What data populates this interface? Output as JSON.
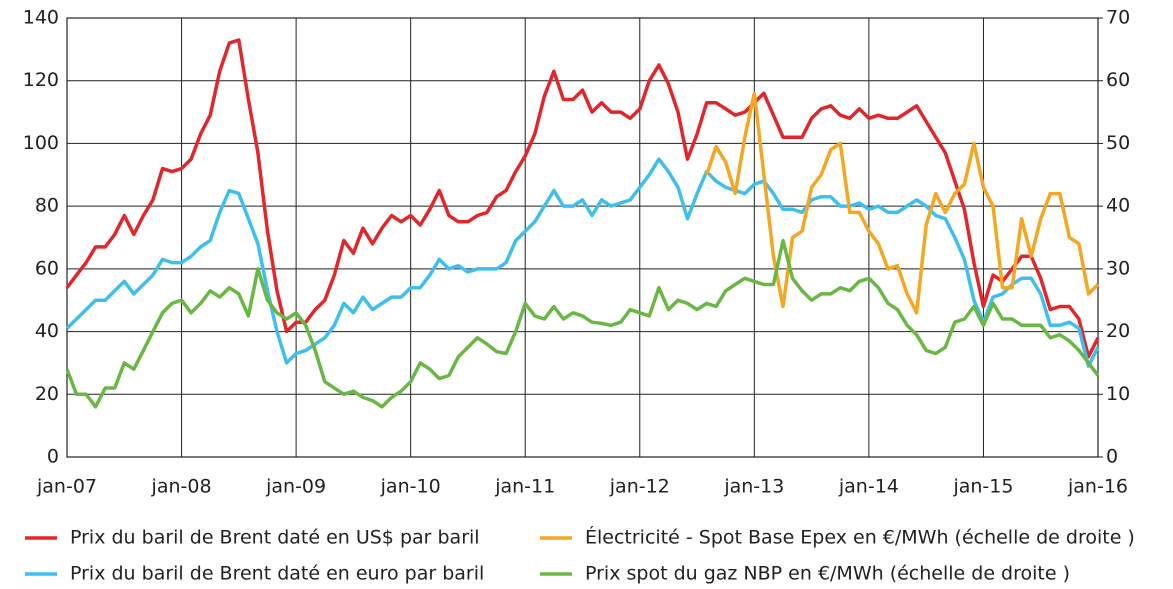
{
  "chart_data": {
    "type": "line",
    "categories": [
      "jan-07",
      null,
      null,
      null,
      null,
      null,
      null,
      null,
      null,
      null,
      null,
      null,
      "jan-08",
      null,
      null,
      null,
      null,
      null,
      null,
      null,
      null,
      null,
      null,
      null,
      "jan-09",
      null,
      null,
      null,
      null,
      null,
      null,
      null,
      null,
      null,
      null,
      null,
      "jan-10",
      null,
      null,
      null,
      null,
      null,
      null,
      null,
      null,
      null,
      null,
      null,
      "jan-11",
      null,
      null,
      null,
      null,
      null,
      null,
      null,
      null,
      null,
      null,
      null,
      "jan-12",
      null,
      null,
      null,
      null,
      null,
      null,
      null,
      null,
      null,
      null,
      null,
      "jan-13",
      null,
      null,
      null,
      null,
      null,
      null,
      null,
      null,
      null,
      null,
      null,
      "jan-14",
      null,
      null,
      null,
      null,
      null,
      null,
      null,
      null,
      null,
      null,
      null,
      "jan-15",
      null,
      null,
      null,
      null,
      null,
      null,
      null,
      null,
      null,
      null,
      null,
      "jan-16"
    ],
    "ylim": [
      0,
      140
    ],
    "yticks": [
      0,
      20,
      40,
      60,
      80,
      100,
      120,
      140
    ],
    "y2lim": [
      0,
      70
    ],
    "y2ticks": [
      0,
      10,
      20,
      30,
      40,
      50,
      60,
      70
    ],
    "grid": true,
    "series": [
      {
        "name": "Prix du baril de Brent daté en US$ par baril",
        "color": "#e3262b",
        "values": [
          54,
          58,
          62,
          67,
          67,
          71,
          77,
          71,
          77,
          82,
          92,
          91,
          92,
          95,
          103,
          109,
          123,
          132,
          133,
          114,
          97,
          72,
          53,
          40,
          43,
          43,
          47,
          50,
          58,
          69,
          65,
          73,
          68,
          73,
          77,
          75,
          77,
          74,
          79,
          85,
          77,
          75,
          75,
          77,
          78,
          83,
          85,
          91,
          96,
          103,
          115,
          123,
          114,
          114,
          117,
          110,
          113,
          110,
          110,
          108,
          111,
          120,
          125,
          119,
          110,
          95,
          103,
          113,
          113,
          111,
          109,
          110,
          113,
          116,
          109,
          102,
          102,
          102,
          108,
          111,
          112,
          109,
          108,
          111,
          108,
          109,
          108,
          108,
          110,
          112,
          107,
          102,
          97,
          88,
          79,
          62,
          48,
          58,
          56,
          60,
          64,
          64,
          57,
          47,
          48,
          48,
          44,
          32,
          38
        ]
      },
      {
        "name": "Prix du baril de Brent daté en euro par baril",
        "color": "#3dbfef",
        "values": [
          41,
          44,
          47,
          50,
          50,
          53,
          56,
          52,
          55,
          58,
          63,
          62,
          62,
          64,
          67,
          69,
          78,
          85,
          84,
          76,
          68,
          53,
          40,
          30,
          33,
          34,
          36,
          38,
          42,
          49,
          46,
          51,
          47,
          49,
          51,
          51,
          54,
          54,
          58,
          63,
          60,
          61,
          59,
          60,
          60,
          60,
          62,
          69,
          72,
          75,
          80,
          85,
          80,
          80,
          82,
          77,
          82,
          80,
          81,
          82,
          86,
          90,
          95,
          91,
          86,
          76,
          84,
          91,
          88,
          86,
          85,
          84,
          87,
          88,
          84,
          79,
          79,
          78,
          82,
          83,
          83,
          80,
          80,
          81,
          79,
          80,
          78,
          78,
          80,
          82,
          80,
          77,
          76,
          70,
          63,
          50,
          43,
          51,
          52,
          55,
          57,
          57,
          52,
          42,
          42,
          43,
          41,
          29,
          35
        ]
      },
      {
        "name": "Électricité - Spot Base Epex en €/MWh (échelle de droite )",
        "color": "#f5a623",
        "axis": "y2",
        "values": [
          null,
          null,
          null,
          null,
          null,
          null,
          null,
          null,
          null,
          null,
          null,
          null,
          null,
          null,
          null,
          null,
          null,
          null,
          null,
          null,
          null,
          null,
          null,
          null,
          null,
          null,
          null,
          null,
          null,
          null,
          null,
          null,
          null,
          null,
          null,
          null,
          null,
          null,
          null,
          null,
          null,
          null,
          null,
          null,
          null,
          null,
          null,
          null,
          null,
          null,
          null,
          null,
          null,
          null,
          null,
          null,
          null,
          null,
          null,
          null,
          null,
          null,
          null,
          null,
          null,
          null,
          null,
          45,
          49.5,
          47,
          42,
          51,
          58,
          45,
          32,
          24,
          35,
          36,
          43,
          45,
          49,
          50,
          39,
          39,
          36,
          34,
          30,
          30.5,
          26,
          23,
          37,
          42,
          39,
          42,
          43.5,
          50,
          43,
          40,
          27,
          27,
          38,
          32,
          38,
          42,
          42,
          35,
          34,
          26,
          27.5
        ]
      },
      {
        "name": "Prix spot du gaz NBP en €/MWh  (échelle de droite )",
        "color": "#6ab844",
        "axis": "y2",
        "values": [
          14,
          10,
          10,
          8,
          11,
          11,
          15,
          14,
          17,
          20,
          23,
          24.5,
          25,
          23,
          24.5,
          26.5,
          25.5,
          27,
          26,
          22.5,
          30,
          25,
          23,
          22,
          23,
          21,
          17,
          12,
          11,
          10,
          10.5,
          9.5,
          9,
          8,
          9.5,
          10.5,
          12,
          15,
          14,
          12.5,
          13,
          16,
          17.5,
          19,
          18,
          16.8,
          16.5,
          20,
          24.5,
          22.5,
          22,
          24,
          22,
          23,
          22.5,
          21.5,
          21.3,
          21,
          21.5,
          23.5,
          23,
          22.5,
          27,
          23.5,
          25,
          24.5,
          23.5,
          24.5,
          24,
          26.5,
          27.5,
          28.5,
          28,
          27.5,
          27.5,
          34.5,
          28.5,
          26.5,
          25,
          26,
          26,
          27,
          26.5,
          28,
          28.5,
          27,
          24.5,
          23.5,
          21,
          19.5,
          17,
          16.5,
          17.5,
          21.5,
          22,
          24,
          21,
          24.5,
          22,
          22,
          21,
          21,
          21,
          19,
          19.5,
          18.5,
          17,
          15,
          13
        ]
      }
    ]
  }
}
